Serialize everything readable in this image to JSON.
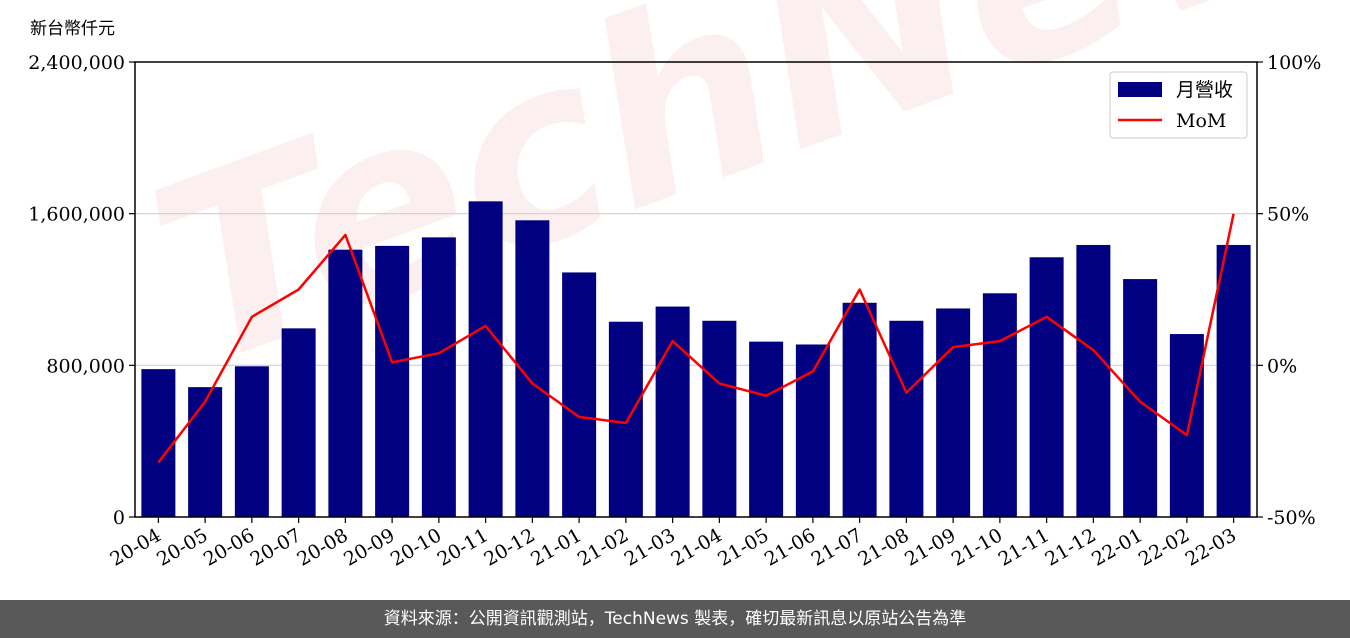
{
  "unit_label": "新台幣仟元",
  "watermark": "TechNews",
  "footer_text": "資料來源：公開資訊觀測站，TechNews 製表，確切最新訊息以原站公告為準",
  "colors": {
    "bar": "#000080",
    "line": "#ff0000",
    "grid": "#d0d0d0",
    "footer": "#595959"
  },
  "chart_data": {
    "type": "bar",
    "categories": [
      "20-04",
      "20-05",
      "20-06",
      "20-07",
      "20-08",
      "20-09",
      "20-10",
      "20-11",
      "20-12",
      "21-01",
      "21-02",
      "21-03",
      "21-04",
      "21-05",
      "21-06",
      "21-07",
      "21-08",
      "21-09",
      "21-10",
      "21-11",
      "21-12",
      "22-01",
      "22-02",
      "22-03"
    ],
    "series": [
      {
        "name": "月營收",
        "type": "bar",
        "axis": "left",
        "values": [
          780000,
          685000,
          795000,
          995000,
          1410000,
          1430000,
          1475000,
          1665000,
          1565000,
          1290000,
          1030000,
          1110000,
          1035000,
          925000,
          910000,
          1130000,
          1035000,
          1100000,
          1180000,
          1370000,
          1435000,
          1255000,
          965000,
          1435000
        ]
      },
      {
        "name": "MoM",
        "type": "line",
        "axis": "right",
        "values": [
          -32,
          -12,
          16,
          25,
          43,
          1,
          4,
          13,
          -6,
          -17,
          -19,
          8,
          -6,
          -10,
          -2,
          25,
          -9,
          6,
          8,
          16,
          5,
          -12,
          -23,
          50
        ]
      }
    ],
    "y_left": {
      "ticks": [
        "0",
        "800,000",
        "1,600,000",
        "2,400,000"
      ],
      "tick_values": [
        0,
        800000,
        1600000,
        2400000
      ],
      "range": [
        0,
        2400000
      ]
    },
    "y_right": {
      "ticks": [
        "-50%",
        "0%",
        "50%",
        "100%"
      ],
      "tick_values": [
        -50,
        0,
        50,
        100
      ],
      "range": [
        -50,
        100
      ]
    },
    "grid": "horizontal",
    "legend_position": "top-right"
  }
}
